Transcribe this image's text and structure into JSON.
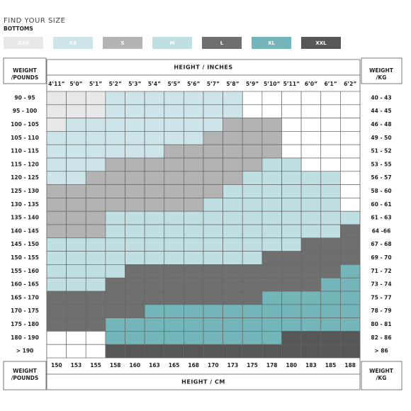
{
  "header": {
    "title": "FIND YOUR SIZE",
    "subtitle": "BOTTOMS"
  },
  "legend": [
    {
      "label": "XXS",
      "color": "#e8e8e8"
    },
    {
      "label": "XS",
      "color": "#cde5e8"
    },
    {
      "label": "S",
      "color": "#b3b3b3"
    },
    {
      "label": "M",
      "color": "#c0dfe2"
    },
    {
      "label": "L",
      "color": "#6f6f6f"
    },
    {
      "label": "XL",
      "color": "#74b5b9"
    },
    {
      "label": "XXL",
      "color": "#575757"
    }
  ],
  "table": {
    "weight_lb_header": [
      "WEIGHT",
      "/POUNDS"
    ],
    "weight_kg_header": [
      "WEIGHT",
      "/KG"
    ],
    "height_in_header": "HEIGHT / INCHES",
    "height_cm_header": "HEIGHT / CM",
    "heights_in": [
      "4’11”",
      "5’0”",
      "5’1”",
      "5’2”",
      "5’3”",
      "5’4”",
      "5’5”",
      "5’6”",
      "5’7”",
      "5’8”",
      "5’9”",
      "5’10”",
      "5’11”",
      "6’0”",
      "6’1”",
      "6’2”"
    ],
    "heights_cm": [
      "150",
      "153",
      "155",
      "158",
      "160",
      "163",
      "165",
      "168",
      "170",
      "173",
      "175",
      "178",
      "180",
      "183",
      "185",
      "188"
    ],
    "weights_lb": [
      "90 - 95",
      "95 - 100",
      "100 - 105",
      "105 - 110",
      "110 - 115",
      "115 - 120",
      "120 - 125",
      "125 - 130",
      "130 - 135",
      "135 - 140",
      "140 - 145",
      "145 - 150",
      "150 - 155",
      "155 - 160",
      "160 - 165",
      "165 - 170",
      "170 - 175",
      "175 - 180",
      "180 - 190",
      "> 190"
    ],
    "weights_kg": [
      "40 - 43",
      "44 - 45",
      "46 - 48",
      "49 - 50",
      "51 - 52",
      "53 - 55",
      "56 - 57",
      "58 - 60",
      "60 - 61",
      "61 - 63",
      "64 -66",
      "67 - 68",
      "69 - 70",
      "71 - 72",
      "73 - 74",
      "75 - 77",
      "78 - 79",
      "80 - 81",
      "82 - 86",
      "> 86"
    ],
    "cells": [
      [
        "XXS",
        "XXS",
        "XXS",
        "XS",
        "XS",
        "XS",
        "XS",
        "XS",
        "XS",
        "XS",
        null,
        null,
        null,
        null,
        null,
        null
      ],
      [
        "XXS",
        "XXS",
        "XXS",
        "XS",
        "XS",
        "XS",
        "XS",
        "XS",
        "XS",
        "XS",
        null,
        null,
        null,
        null,
        null,
        null
      ],
      [
        "XXS",
        "XS",
        "XS",
        "XS",
        "XS",
        "XS",
        "XS",
        "XS",
        "XS",
        "S",
        "S",
        "S",
        null,
        null,
        null,
        null
      ],
      [
        "XS",
        "XS",
        "XS",
        "XS",
        "XS",
        "XS",
        "XS",
        "XS",
        "S",
        "S",
        "S",
        "S",
        null,
        null,
        null,
        null
      ],
      [
        "XS",
        "XS",
        "XS",
        "XS",
        "XS",
        "XS",
        "S",
        "S",
        "S",
        "S",
        "S",
        "S",
        null,
        null,
        null,
        null
      ],
      [
        "XS",
        "XS",
        "XS",
        "S",
        "S",
        "S",
        "S",
        "S",
        "S",
        "S",
        "S",
        "M",
        "M",
        null,
        null,
        null
      ],
      [
        "XS",
        "XS",
        "S",
        "S",
        "S",
        "S",
        "S",
        "S",
        "S",
        "S",
        "M",
        "M",
        "M",
        "M",
        "M",
        null
      ],
      [
        "S",
        "S",
        "S",
        "S",
        "S",
        "S",
        "S",
        "S",
        "S",
        "M",
        "M",
        "M",
        "M",
        "M",
        "M",
        null
      ],
      [
        "S",
        "S",
        "S",
        "S",
        "S",
        "S",
        "S",
        "S",
        "M",
        "M",
        "M",
        "M",
        "M",
        "M",
        "M",
        null
      ],
      [
        "S",
        "S",
        "S",
        "M",
        "M",
        "M",
        "M",
        "M",
        "M",
        "M",
        "M",
        "M",
        "M",
        "M",
        "M",
        "M"
      ],
      [
        "S",
        "S",
        "S",
        "M",
        "M",
        "M",
        "M",
        "M",
        "M",
        "M",
        "M",
        "M",
        "M",
        "M",
        "M",
        "L"
      ],
      [
        "M",
        "M",
        "M",
        "M",
        "M",
        "M",
        "M",
        "M",
        "M",
        "M",
        "M",
        "M",
        "M",
        "L",
        "L",
        "L"
      ],
      [
        "M",
        "M",
        "M",
        "M",
        "M",
        "M",
        "M",
        "M",
        "M",
        "M",
        "M",
        "L",
        "L",
        "L",
        "L",
        "L"
      ],
      [
        "M",
        "M",
        "M",
        "M",
        "L",
        "L",
        "L",
        "L",
        "L",
        "L",
        "L",
        "L",
        "L",
        "L",
        "L",
        "XL"
      ],
      [
        "M",
        "M",
        "M",
        "L",
        "L",
        "L",
        "L",
        "L",
        "L",
        "L",
        "L",
        "L",
        "L",
        "L",
        "XL",
        "XL"
      ],
      [
        "L",
        "L",
        "L",
        "L",
        "L",
        "L",
        "L",
        "L",
        "L",
        "L",
        "L",
        "XL",
        "XL",
        "XL",
        "XL",
        "XL"
      ],
      [
        "L",
        "L",
        "L",
        "L",
        "L",
        "XL",
        "XL",
        "XL",
        "XL",
        "XL",
        "XL",
        "XL",
        "XL",
        "XL",
        "XL",
        "XL"
      ],
      [
        "L",
        "L",
        "L",
        "XL",
        "XL",
        "XL",
        "XL",
        "XL",
        "XL",
        "XL",
        "XL",
        "XL",
        "XL",
        "XL",
        "XL",
        "XL"
      ],
      [
        null,
        null,
        null,
        "XL",
        "XL",
        "XL",
        "XL",
        "XL",
        "XL",
        "XL",
        "XL",
        "XL",
        "XXL",
        "XXL",
        "XXL",
        "XXL"
      ],
      [
        null,
        null,
        null,
        "XXL",
        "XXL",
        "XXL",
        "XXL",
        "XXL",
        "XXL",
        "XXL",
        "XXL",
        "XXL",
        "XXL",
        "XXL",
        "XXL",
        "XXL"
      ]
    ]
  }
}
